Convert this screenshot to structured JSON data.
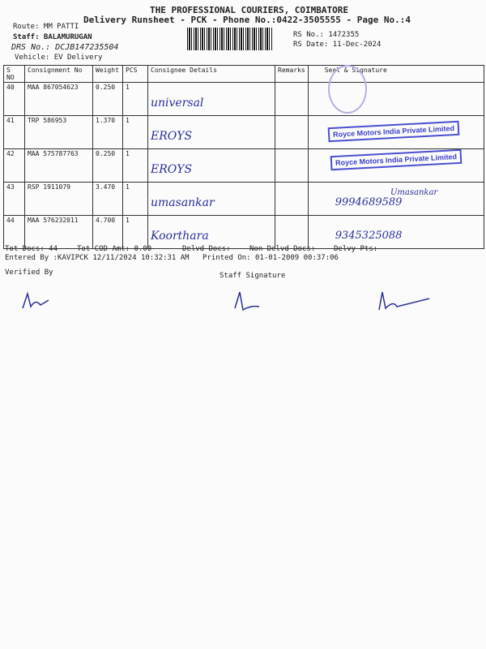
{
  "header": {
    "company": "THE PROFESSIONAL COURIERS, COIMBATORE",
    "title": "Delivery Runsheet - PCK - Phone No.:0422-3505555 - Page No.:4",
    "route": "Route: MM PATTI",
    "staff": "Staff: BALAMURUGAN",
    "drs_no": "DRS No.: DCJB147235504",
    "vehicle": "Vehicle: EV Delivery",
    "rs_no": "RS No.: 1472355",
    "rs_date": "RS Date: 11-Dec-2024"
  },
  "table": {
    "columns": [
      "S NO",
      "Consignment No",
      "Weight",
      "PCS",
      "Consignee Details",
      "Remarks",
      "Seal & Signature"
    ],
    "rows": [
      {
        "sno": "40",
        "cons": "MAA 867054623",
        "weight": "0.250",
        "pcs": "1",
        "hand": "universal",
        "sig": ""
      },
      {
        "sno": "41",
        "cons": "TRP 586953",
        "weight": "1.370",
        "pcs": "1",
        "hand": "EROYS",
        "sig": ""
      },
      {
        "sno": "42",
        "cons": "MAA 575787763",
        "weight": "0.250",
        "pcs": "1",
        "hand": "EROYS",
        "sig": ""
      },
      {
        "sno": "43",
        "cons": "RSP 1911079",
        "weight": "3.470",
        "pcs": "1",
        "hand": "umasankar",
        "sig": "9994689589"
      },
      {
        "sno": "44",
        "cons": "MAA 576232011",
        "weight": "4.700",
        "pcs": "1",
        "hand": "Koorthara",
        "sig": "9345325088"
      }
    ]
  },
  "stamps": {
    "royce": "Royce Motors India Private Limited",
    "umasankar": "Umasankar"
  },
  "footer": {
    "tot_docs": "Tot Docs:  44",
    "tot_cod": "Tot COD Amt:    0.00",
    "delvd": "Delvd Docs:",
    "non_delvd": "Non Delvd Docs:",
    "delvy_pts": "Delvy Pts:",
    "entered_by": "Entered By :KAVIPCK 12/11/2024 10:32:31 AM",
    "printed_on": "Printed On: 01-01-2009 00:37:06",
    "verified_by": "Verified By",
    "staff_signature": "Staff Signature"
  }
}
